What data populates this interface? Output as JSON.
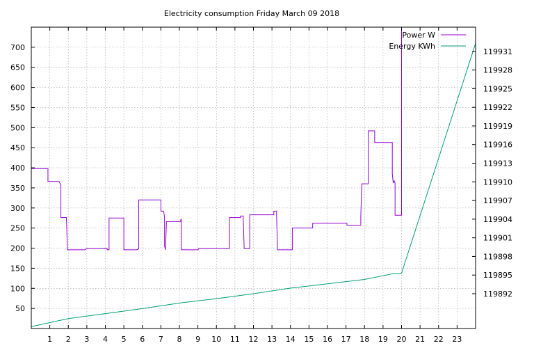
{
  "chart_data": {
    "type": "line",
    "title": "Electricity consumption Friday March 09 2018",
    "xlabel": "",
    "ylabel": "",
    "y2label": "",
    "xlim": [
      0,
      24
    ],
    "ylim": [
      0,
      750
    ],
    "y2lim": [
      119886.4,
      119934.9
    ],
    "grid": true,
    "legend_position": "top-right",
    "x_ticks": [
      1,
      2,
      3,
      4,
      5,
      6,
      7,
      8,
      9,
      10,
      11,
      12,
      13,
      14,
      15,
      16,
      17,
      18,
      19,
      20,
      21,
      22,
      23
    ],
    "y_ticks": [
      50,
      100,
      150,
      200,
      250,
      300,
      350,
      400,
      450,
      500,
      550,
      600,
      650,
      700
    ],
    "y2_ticks": [
      119892,
      119895,
      119898,
      119901,
      119904,
      119907,
      119910,
      119913,
      119916,
      119919,
      119922,
      119925,
      119928,
      119931
    ],
    "series": [
      {
        "name": "Power W",
        "axis": "y",
        "color": "#9400d3",
        "points": [
          [
            0,
            398
          ],
          [
            0.9,
            398
          ],
          [
            0.9,
            366
          ],
          [
            1.5,
            366
          ],
          [
            1.6,
            357
          ],
          [
            1.6,
            276
          ],
          [
            1.9,
            276
          ],
          [
            1.95,
            196
          ],
          [
            2.9,
            196
          ],
          [
            3.0,
            199
          ],
          [
            4.1,
            199
          ],
          [
            4.1,
            196
          ],
          [
            4.2,
            196
          ],
          [
            4.2,
            275
          ],
          [
            5.0,
            275
          ],
          [
            5.0,
            196
          ],
          [
            5.7,
            196
          ],
          [
            5.8,
            198
          ],
          [
            5.8,
            320
          ],
          [
            7.0,
            320
          ],
          [
            7.0,
            292
          ],
          [
            7.15,
            292
          ],
          [
            7.2,
            276
          ],
          [
            7.2,
            205
          ],
          [
            7.25,
            196
          ],
          [
            7.3,
            266
          ],
          [
            8.05,
            266
          ],
          [
            8.1,
            273
          ],
          [
            8.1,
            196
          ],
          [
            9.0,
            196
          ],
          [
            9.05,
            199
          ],
          [
            10.7,
            199
          ],
          [
            10.7,
            276
          ],
          [
            11.3,
            276
          ],
          [
            11.3,
            280
          ],
          [
            11.45,
            280
          ],
          [
            11.45,
            272
          ],
          [
            11.5,
            199
          ],
          [
            11.8,
            199
          ],
          [
            11.8,
            283
          ],
          [
            13.1,
            283
          ],
          [
            13.1,
            292
          ],
          [
            13.25,
            292
          ],
          [
            13.25,
            283
          ],
          [
            13.3,
            196
          ],
          [
            14.1,
            196
          ],
          [
            14.1,
            250
          ],
          [
            15.2,
            250
          ],
          [
            15.2,
            262
          ],
          [
            17.05,
            262
          ],
          [
            17.05,
            257
          ],
          [
            17.8,
            257
          ],
          [
            17.8,
            280
          ],
          [
            17.85,
            360
          ],
          [
            18.2,
            360
          ],
          [
            18.2,
            492
          ],
          [
            18.55,
            492
          ],
          [
            18.55,
            463
          ],
          [
            19.5,
            463
          ],
          [
            19.5,
            385
          ],
          [
            19.55,
            362
          ],
          [
            19.6,
            368
          ],
          [
            19.65,
            362
          ],
          [
            19.65,
            282
          ],
          [
            20.0,
            282
          ],
          [
            20.0,
            750
          ]
        ]
      },
      {
        "name": "Energy KWh",
        "axis": "y2",
        "color": "#009e73",
        "points": [
          [
            0,
            119886.7
          ],
          [
            2,
            119888.0
          ],
          [
            4,
            119888.8
          ],
          [
            6,
            119889.6
          ],
          [
            8,
            119890.5
          ],
          [
            10,
            119891.2
          ],
          [
            12,
            119892.0
          ],
          [
            14,
            119892.9
          ],
          [
            16,
            119893.6
          ],
          [
            18,
            119894.3
          ],
          [
            19.5,
            119895.2
          ],
          [
            20.0,
            119895.3
          ],
          [
            24,
            119932.3
          ]
        ]
      }
    ]
  }
}
